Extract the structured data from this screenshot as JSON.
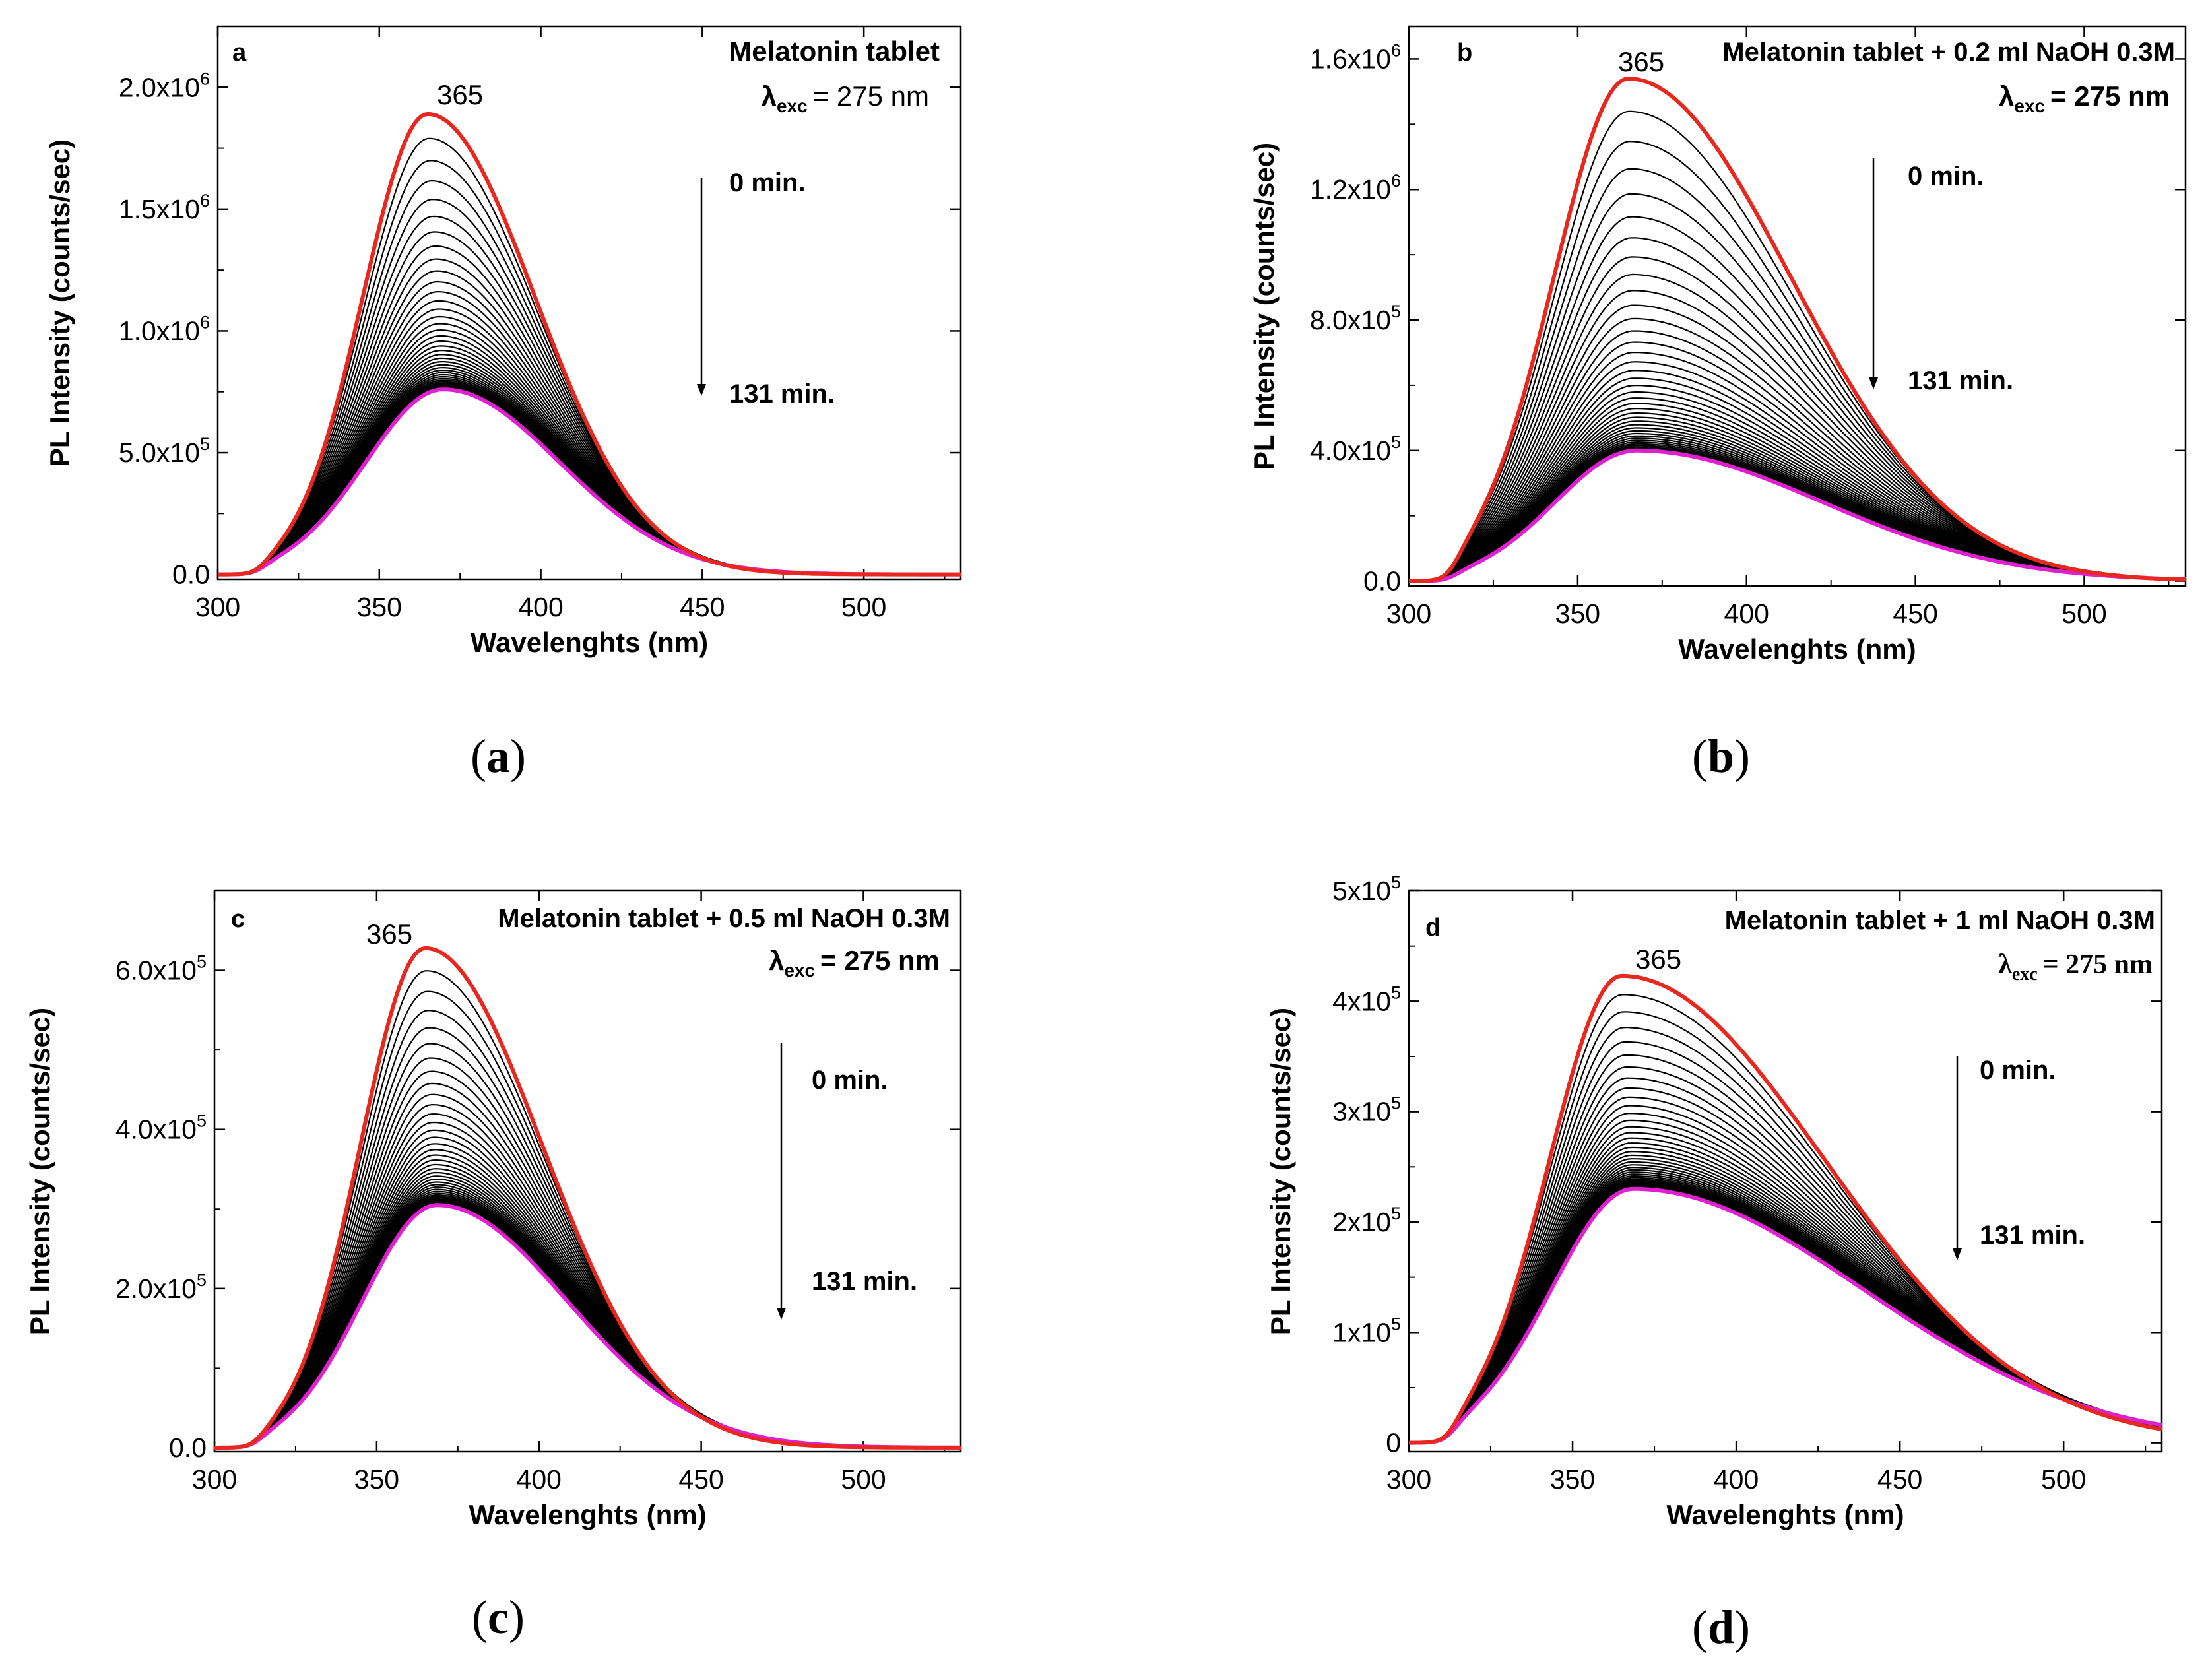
{
  "chart_data": [
    {
      "type": "line",
      "panel": "a",
      "caption": "a",
      "title": "Melatonin tablet",
      "excitation_symbol": "λ",
      "excitation_sub": "exc",
      "excitation_value": "= 275 nm",
      "peak_label": "365",
      "time_start": "0 min.",
      "time_end": "131 min.",
      "xlabel": "Wavelenghts (nm)",
      "ylabel": "PL Intensity (counts/sec)",
      "xlim": [
        300,
        530
      ],
      "ylim": [
        -20000,
        2250000
      ],
      "xticks": [
        300,
        350,
        400,
        450,
        500
      ],
      "yticks": [
        {
          "value": 0,
          "mant": "0.0",
          "exp": ""
        },
        {
          "value": 500000,
          "mant": "5.0x10",
          "exp": "5"
        },
        {
          "value": 1000000,
          "mant": "1.0x10",
          "exp": "6"
        },
        {
          "value": 1500000,
          "mant": "1.5x10",
          "exp": "6"
        },
        {
          "value": 2000000,
          "mant": "2.0x10",
          "exp": "6"
        }
      ],
      "peak_wavelength": 365,
      "onset": 313,
      "series_count": 40,
      "series": [
        {
          "name": "0 min.",
          "color": "#e8281e",
          "peak": 1890000,
          "sigma_left": 20,
          "sigma_right": 33
        },
        {
          "name": "131 min.",
          "color": "#e020d0",
          "peak": 760000,
          "sigma_left": 24,
          "sigma_right": 36
        }
      ],
      "intermediate_color": "#000000"
    },
    {
      "type": "line",
      "panel": "b",
      "caption": "b",
      "title": "Melatonin tablet + 0.2 ml NaOH 0.3M",
      "excitation_symbol": "λ",
      "excitation_sub": "exc",
      "excitation_value": "= 275 nm",
      "peak_label": "365",
      "time_start": "0 min.",
      "time_end": "131 min.",
      "xlabel": "Wavelenghts (nm)",
      "ylabel": "PL Intensity (counts/sec)",
      "xlim": [
        300,
        530
      ],
      "ylim": [
        -15000,
        1700000
      ],
      "xticks": [
        300,
        350,
        400,
        450,
        500
      ],
      "yticks": [
        {
          "value": 0,
          "mant": "0.0",
          "exp": ""
        },
        {
          "value": 400000,
          "mant": "4.0x10",
          "exp": "5"
        },
        {
          "value": 800000,
          "mant": "8.0x10",
          "exp": "5"
        },
        {
          "value": 1200000,
          "mant": "1.2x10",
          "exp": "6"
        },
        {
          "value": 1600000,
          "mant": "1.6x10",
          "exp": "6"
        }
      ],
      "peak_wavelength": 365,
      "onset": 313,
      "series_count": 40,
      "series": [
        {
          "name": "0 min.",
          "color": "#e8281e",
          "peak": 1540000,
          "sigma_left": 22,
          "sigma_right": 48
        },
        {
          "name": "131 min.",
          "color": "#e020d0",
          "peak": 400000,
          "sigma_left": 24,
          "sigma_right": 55
        }
      ],
      "intermediate_color": "#000000"
    },
    {
      "type": "line",
      "panel": "c",
      "caption": "c",
      "title": "Melatonin tablet + 0.5 ml NaOH 0.3M",
      "excitation_symbol": "λ",
      "excitation_sub": "exc",
      "excitation_value": "= 275 nm",
      "peak_label": "365",
      "time_start": "0 min.",
      "time_end": "131 min.",
      "xlabel": "Wavelenghts (nm)",
      "ylabel": "PL Intensity (counts/sec)",
      "xlim": [
        300,
        530
      ],
      "ylim": [
        -5000,
        700000
      ],
      "xticks": [
        300,
        350,
        400,
        450,
        500
      ],
      "yticks": [
        {
          "value": 0,
          "mant": "0.0",
          "exp": ""
        },
        {
          "value": 200000,
          "mant": "2.0x10",
          "exp": "5"
        },
        {
          "value": 400000,
          "mant": "4.0x10",
          "exp": "5"
        },
        {
          "value": 600000,
          "mant": "6.0x10",
          "exp": "5"
        }
      ],
      "peak_wavelength": 365,
      "onset": 313,
      "series_count": 40,
      "series": [
        {
          "name": "0 min.",
          "color": "#e8281e",
          "peak": 628000,
          "sigma_left": 20,
          "sigma_right": 36
        },
        {
          "name": "131 min.",
          "color": "#e020d0",
          "peak": 305000,
          "sigma_left": 23,
          "sigma_right": 40
        }
      ],
      "intermediate_color": "#000000"
    },
    {
      "type": "line",
      "panel": "d",
      "caption": "d",
      "title": "Melatonin tablet + 1 ml NaOH 0.3M",
      "excitation_symbol": "λ",
      "excitation_sub": "exc",
      "excitation_value": "= 275 nm",
      "peak_label": "365",
      "time_start": "0 min.",
      "time_end": "131 min.",
      "xlabel": "Wavelenghts (nm)",
      "ylabel": "PL Intensity (counts/sec)",
      "xlim": [
        300,
        530
      ],
      "ylim": [
        -8000,
        500000
      ],
      "xticks": [
        300,
        350,
        400,
        450,
        500
      ],
      "yticks": [
        {
          "value": 0,
          "mant": "0",
          "exp": ""
        },
        {
          "value": 100000,
          "mant": "1x10",
          "exp": "5"
        },
        {
          "value": 200000,
          "mant": "2x10",
          "exp": "5"
        },
        {
          "value": 300000,
          "mant": "3x10",
          "exp": "5"
        },
        {
          "value": 400000,
          "mant": "4x10",
          "exp": "5"
        },
        {
          "value": 500000,
          "mant": "5x10",
          "exp": "5"
        }
      ],
      "peak_wavelength": 365,
      "onset": 313,
      "series_count": 40,
      "series": [
        {
          "name": "0 min.",
          "color": "#e8281e",
          "peak": 423000,
          "sigma_left": 22,
          "sigma_right": 62
        },
        {
          "name": "131 min.",
          "color": "#e020d0",
          "peak": 230000,
          "sigma_left": 25,
          "sigma_right": 70
        }
      ],
      "intermediate_color": "#000000"
    }
  ]
}
